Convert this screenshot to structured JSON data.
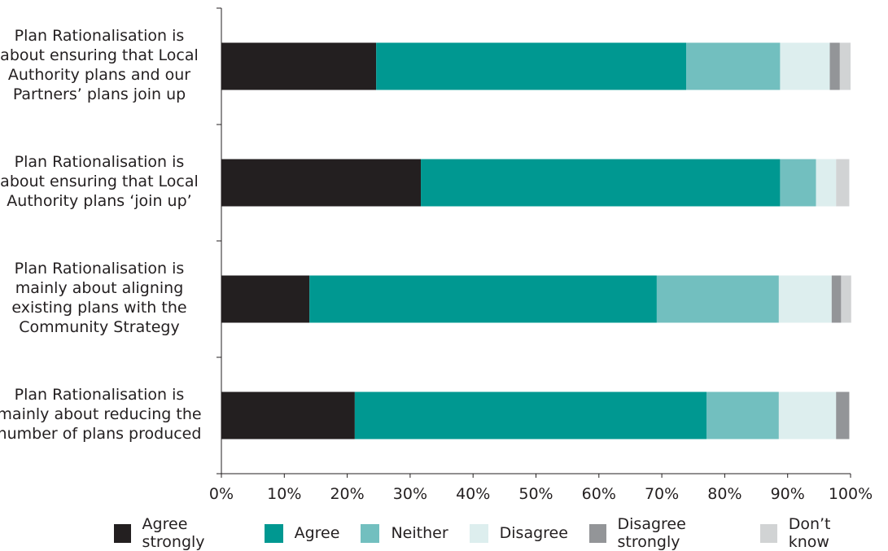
{
  "chart_data": {
    "type": "bar",
    "orientation": "horizontal",
    "stacked": true,
    "categories": [
      "Plan Rationalisation is about ensuring that Local Authority plans and our Partners’ plans join up",
      "Plan Rationalisation is about ensuring that Local Authority plans ‘join up’",
      "Plan Rationalisation is mainly about aligning existing plans with the Community Strategy",
      "Plan Rationalisation is mainly about reducing the number of plans produced"
    ],
    "category_lines": [
      [
        "Plan Rationalisation is",
        "about ensuring that Local",
        "Authority plans and our",
        "Partners’ plans join up"
      ],
      [
        "Plan Rationalisation is",
        "about ensuring that Local",
        "Authority plans ‘join up’"
      ],
      [
        "Plan Rationalisation is",
        "mainly about aligning",
        "existing plans with the",
        "Community Strategy"
      ],
      [
        "Plan Rationalisation is",
        "mainly about reducing the",
        "number of plans produced"
      ]
    ],
    "series": [
      {
        "name": "Agree strongly",
        "color": "#231f20",
        "values": [
          24.6,
          31.7,
          14.0,
          21.2
        ]
      },
      {
        "name": "Agree",
        "color": "#009891",
        "values": [
          49.3,
          57.1,
          55.2,
          55.9
        ]
      },
      {
        "name": "Neither",
        "color": "#72bfbf",
        "values": [
          14.9,
          5.7,
          19.4,
          11.5
        ]
      },
      {
        "name": "Disagree",
        "color": "#ddeeee",
        "values": [
          7.9,
          3.2,
          8.4,
          9.1
        ]
      },
      {
        "name": "Disagree strongly",
        "color": "#939598",
        "values": [
          1.6,
          0.0,
          1.5,
          2.1
        ]
      },
      {
        "name": "Don’t know",
        "color": "#d1d3d4",
        "values": [
          1.7,
          2.1,
          1.6,
          0.0
        ]
      }
    ],
    "x_ticks": [
      "0%",
      "10%",
      "20%",
      "30%",
      "40%",
      "50%",
      "60%",
      "70%",
      "80%",
      "90%",
      "100%"
    ],
    "xlim": [
      0,
      100
    ],
    "grid": false,
    "legend_position": "bottom"
  }
}
